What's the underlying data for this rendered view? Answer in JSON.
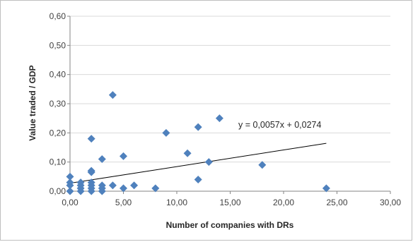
{
  "chart_data": {
    "type": "scatter",
    "title": "",
    "xlabel": "Number of companies with DRs",
    "ylabel": "Value traded / GDP",
    "xlim": [
      0,
      30
    ],
    "ylim": [
      0,
      0.6
    ],
    "x_ticks": [
      "0,00",
      "5,00",
      "10,00",
      "15,00",
      "20,00",
      "25,00",
      "30,00"
    ],
    "y_ticks": [
      "0,00",
      "0,10",
      "0,20",
      "0,30",
      "0,40",
      "0,50",
      "0,60"
    ],
    "grid": "horizontal",
    "legend": "none",
    "marker_color": "#4f81bd",
    "trendline": {
      "equation": "y = 0,0057x + 0,0274",
      "slope": 0.0057,
      "intercept": 0.0274,
      "x_range": [
        0,
        24
      ],
      "color": "#000000"
    },
    "series": [
      {
        "points": [
          {
            "x": 0,
            "y": 0.05
          },
          {
            "x": 0,
            "y": 0.03
          },
          {
            "x": 0,
            "y": 0.02
          },
          {
            "x": 0,
            "y": 0.0
          },
          {
            "x": 1,
            "y": 0.03
          },
          {
            "x": 1,
            "y": 0.02
          },
          {
            "x": 1,
            "y": 0.01
          },
          {
            "x": 1,
            "y": 0.0
          },
          {
            "x": 2,
            "y": 0.18
          },
          {
            "x": 2,
            "y": 0.07
          },
          {
            "x": 2,
            "y": 0.065
          },
          {
            "x": 2,
            "y": 0.03
          },
          {
            "x": 2,
            "y": 0.02
          },
          {
            "x": 2,
            "y": 0.01
          },
          {
            "x": 2,
            "y": 0.0
          },
          {
            "x": 3,
            "y": 0.11
          },
          {
            "x": 3,
            "y": 0.02
          },
          {
            "x": 3,
            "y": 0.01
          },
          {
            "x": 3,
            "y": 0.0
          },
          {
            "x": 4,
            "y": 0.33
          },
          {
            "x": 4,
            "y": 0.02
          },
          {
            "x": 5,
            "y": 0.12
          },
          {
            "x": 5,
            "y": 0.01
          },
          {
            "x": 6,
            "y": 0.02
          },
          {
            "x": 8,
            "y": 0.01
          },
          {
            "x": 9,
            "y": 0.2
          },
          {
            "x": 11,
            "y": 0.13
          },
          {
            "x": 12,
            "y": 0.22
          },
          {
            "x": 12,
            "y": 0.04
          },
          {
            "x": 13,
            "y": 0.1
          },
          {
            "x": 14,
            "y": 0.25
          },
          {
            "x": 18,
            "y": 0.09
          },
          {
            "x": 24,
            "y": 0.01
          }
        ]
      }
    ]
  }
}
